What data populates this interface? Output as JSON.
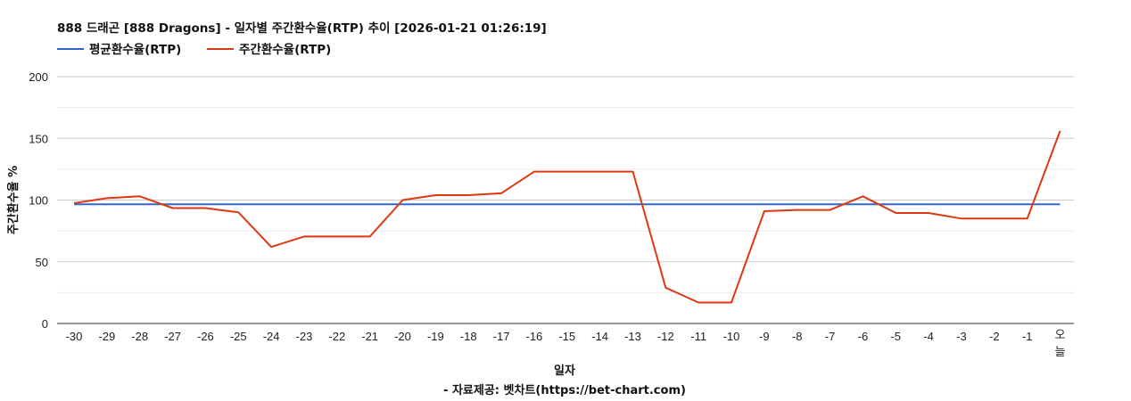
{
  "chart_data": {
    "type": "line",
    "title": "888 드래곤 [888 Dragons] - 일자별 주간환수율(RTP) 추이 [2026-01-21 01:26:19]",
    "xlabel": "일자",
    "ylabel": "주간환수율 %",
    "source": "- 자료제공: 벳차트(https://bet-chart.com)",
    "ylim": [
      0,
      200
    ],
    "yticks": [
      "0",
      "50",
      "100",
      "150",
      "200"
    ],
    "categories": [
      "-30",
      "-29",
      "-28",
      "-27",
      "-26",
      "-25",
      "-24",
      "-23",
      "-22",
      "-21",
      "-20",
      "-19",
      "-18",
      "-17",
      "-16",
      "-15",
      "-14",
      "-13",
      "-12",
      "-11",
      "-10",
      "-9",
      "-8",
      "-7",
      "-6",
      "-5",
      "-4",
      "-3",
      "-2",
      "-1",
      "오늘"
    ],
    "legend_position": "top-left",
    "grid": true,
    "series": [
      {
        "name": "평균환수율(RTP)",
        "color": "#3366cc",
        "values": [
          96.5,
          96.5,
          96.5,
          96.5,
          96.5,
          96.5,
          96.5,
          96.5,
          96.5,
          96.5,
          96.5,
          96.5,
          96.5,
          96.5,
          96.5,
          96.5,
          96.5,
          96.5,
          96.5,
          96.5,
          96.5,
          96.5,
          96.5,
          96.5,
          96.5,
          96.5,
          96.5,
          96.5,
          96.5,
          96.5,
          96.5
        ]
      },
      {
        "name": "주간환수율(RTP)",
        "color": "#dc3912",
        "values": [
          97.5,
          101.5,
          103,
          93.5,
          93.5,
          90,
          62,
          70.5,
          70.5,
          70.5,
          100,
          104,
          104,
          105.5,
          123,
          123,
          123,
          123,
          29,
          17,
          17,
          91,
          92,
          92,
          103,
          89.5,
          89.5,
          85,
          85,
          85,
          156
        ]
      }
    ]
  }
}
